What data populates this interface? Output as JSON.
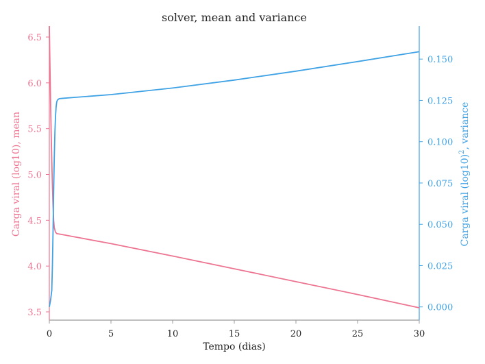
{
  "chart_data": {
    "type": "line",
    "title": "solver, mean and variance",
    "xlabel": "Tempo (dias)",
    "ylabel_left": "Carga viral (log10), mean",
    "ylabel_right_base": "Carga viral (log10)",
    "ylabel_right_sup": "2",
    "ylabel_right_suffix": ", variance",
    "xlim": [
      0,
      30
    ],
    "ylim_left": [
      3.41,
      6.62
    ],
    "ylim_right": [
      -0.008,
      0.17
    ],
    "x_ticks": [
      0,
      5,
      10,
      15,
      20,
      25,
      30
    ],
    "x_tick_labels": [
      "0",
      "5",
      "10",
      "15",
      "20",
      "25",
      "30"
    ],
    "left_ticks": [
      3.5,
      4.0,
      4.5,
      5.0,
      5.5,
      6.0,
      6.5
    ],
    "left_tick_labels": [
      "3.5",
      "4.0",
      "4.5",
      "5.0",
      "5.5",
      "6.0",
      "6.5"
    ],
    "right_ticks": [
      0.0,
      0.025,
      0.05,
      0.075,
      0.1,
      0.125,
      0.15
    ],
    "right_tick_labels": [
      "0.000",
      "0.025",
      "0.050",
      "0.075",
      "0.100",
      "0.125",
      "0.150"
    ],
    "grid": false,
    "colors": {
      "mean": "#ed7491",
      "variance": "#3fa2e5",
      "axis": "#999999",
      "text": "#222222"
    },
    "series": [
      {
        "axis": "left",
        "x": [
          0,
          0.05,
          0.1,
          0.15,
          0.2,
          0.25,
          0.3,
          0.35,
          0.4,
          0.5,
          0.6,
          0.8,
          1,
          2,
          5,
          10,
          15,
          20,
          25,
          30
        ],
        "values": [
          6.62,
          6.2,
          5.8,
          5.45,
          5.15,
          4.88,
          4.66,
          4.5,
          4.42,
          4.37,
          4.355,
          4.35,
          4.345,
          4.32,
          4.245,
          4.11,
          3.97,
          3.83,
          3.69,
          3.545
        ]
      },
      {
        "axis": "right",
        "x": [
          0,
          0.1,
          0.2,
          0.25,
          0.3,
          0.35,
          0.4,
          0.45,
          0.5,
          0.55,
          0.6,
          0.65,
          0.7,
          0.8,
          1,
          2,
          5,
          10,
          15,
          20,
          25,
          30
        ],
        "values": [
          0.0,
          0.004,
          0.01,
          0.025,
          0.045,
          0.07,
          0.09,
          0.105,
          0.115,
          0.121,
          0.124,
          0.125,
          0.1255,
          0.126,
          0.1262,
          0.1268,
          0.1285,
          0.1325,
          0.1373,
          0.1427,
          0.1485,
          0.1545
        ]
      }
    ]
  }
}
